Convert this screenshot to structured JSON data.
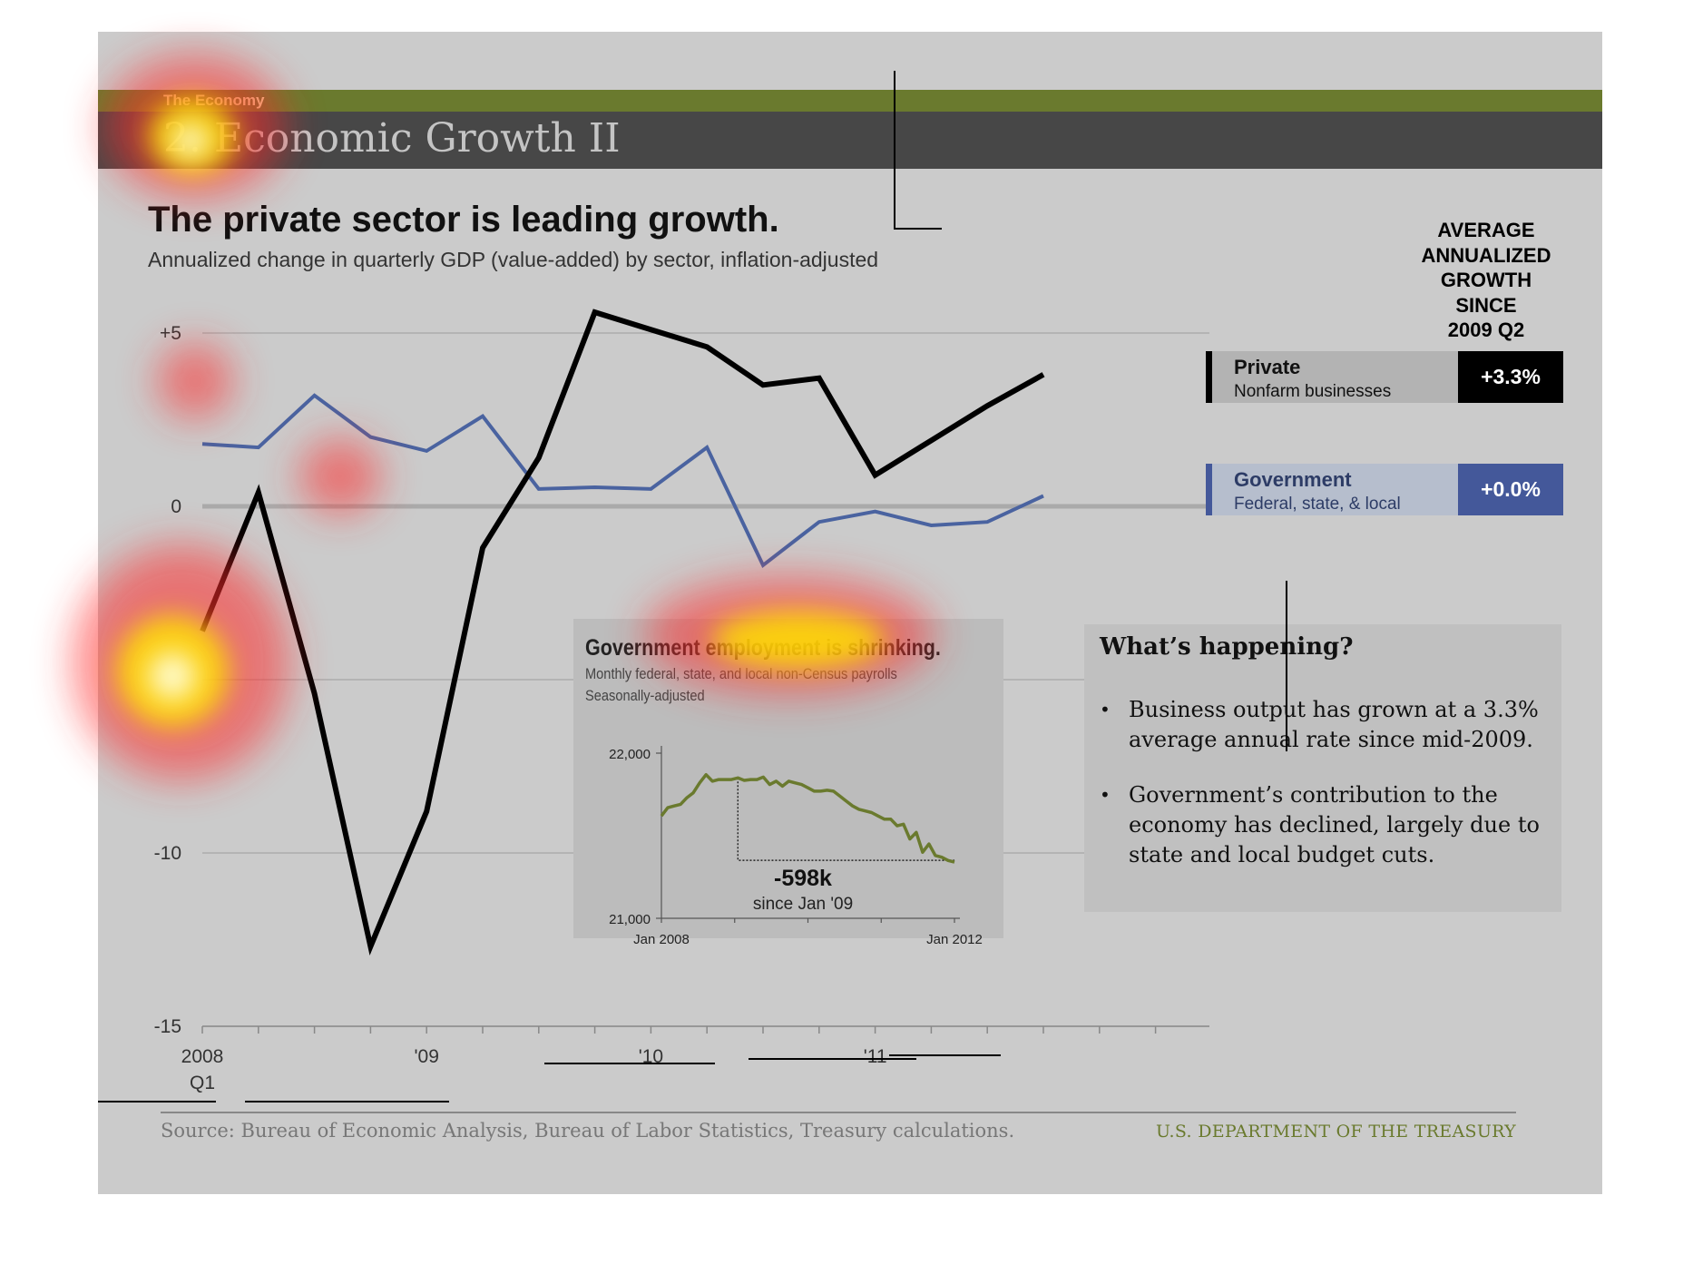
{
  "header": {
    "section_label": "The Economy",
    "slide_title": "2. Economic Growth II"
  },
  "headline": "The private sector is leading growth.",
  "subtitle": "Annualized change in quarterly GDP (value-added) by sector, inflation-adjusted",
  "avg_growth_heading": [
    "AVERAGE",
    "ANNUALIZED",
    "GROWTH",
    "SINCE",
    "2009 Q2"
  ],
  "legend": {
    "private": {
      "title": "Private",
      "subtitle": "Nonfarm businesses",
      "value": "+3.3%"
    },
    "government": {
      "title": "Government",
      "subtitle": "Federal, state, & local",
      "value": "+0.0%"
    }
  },
  "colors": {
    "private": "#000000",
    "government": "#4a63a0",
    "inset_line": "#6a7a2e",
    "header_green": "#6a7a2e",
    "header_dark": "#474747"
  },
  "chart_data": [
    {
      "type": "line",
      "title": "The private sector is leading growth.",
      "subtitle": "Annualized change in quarterly GDP (value-added) by sector, inflation-adjusted",
      "ylim": [
        -15,
        5
      ],
      "yticks": [
        "+5",
        "0",
        "-5",
        "-10",
        "-15"
      ],
      "ytick_labels_shown": [
        "+5",
        "0",
        "-10",
        "-15"
      ],
      "yticks_values": [
        5,
        0,
        -5,
        -10,
        -15
      ],
      "x_labels": [
        {
          "label": "2008",
          "sub": "Q1",
          "index": 0
        },
        {
          "label": "'09",
          "sub": "",
          "index": 4
        },
        {
          "label": "'10",
          "sub": "",
          "index": 8
        },
        {
          "label": "'11",
          "sub": "",
          "index": 12
        }
      ],
      "x_quarters": [
        "2008 Q1",
        "2008 Q2",
        "2008 Q3",
        "2008 Q4",
        "2009 Q1",
        "2009 Q2",
        "2009 Q3",
        "2009 Q4",
        "2010 Q1",
        "2010 Q2",
        "2010 Q3",
        "2010 Q4",
        "2011 Q1",
        "2011 Q2",
        "2011 Q3",
        "2011 Q4"
      ],
      "grid": true,
      "series": [
        {
          "name": "Private",
          "values": [
            -3.6,
            0.4,
            -5.4,
            -12.7,
            -8.8,
            -1.2,
            1.4,
            5.6,
            5.1,
            4.6,
            3.5,
            3.7,
            0.9,
            1.9,
            2.9,
            3.8
          ]
        },
        {
          "name": "Government",
          "values": [
            1.8,
            1.7,
            3.2,
            2.0,
            1.6,
            2.6,
            0.5,
            0.55,
            0.5,
            1.7,
            -1.7,
            -0.45,
            -0.15,
            -0.55,
            -0.45,
            0.3
          ]
        }
      ]
    },
    {
      "type": "line",
      "title": "Government employment is shrinking.",
      "subtitle": "Monthly federal, state, and local non-Census payrolls",
      "subtitle2": "Seasonally-adjusted",
      "ylim": [
        21000,
        22000
      ],
      "ytick_labels": [
        "22,000",
        "21,000"
      ],
      "x_labels": [
        "Jan 2008",
        "Jan 2012"
      ],
      "annotation": {
        "value": "-598k",
        "text": "since Jan '09"
      },
      "series": [
        {
          "name": "",
          "values": [
            21620,
            21670,
            21680,
            21690,
            21730,
            21760,
            21820,
            21870,
            21830,
            21840,
            21840,
            21840,
            21850,
            21835,
            21840,
            21840,
            21855,
            21810,
            21830,
            21800,
            21830,
            21820,
            21810,
            21790,
            21770,
            21770,
            21775,
            21770,
            21740,
            21710,
            21680,
            21660,
            21650,
            21640,
            21620,
            21600,
            21600,
            21560,
            21570,
            21480,
            21520,
            21400,
            21450,
            21380,
            21370,
            21350,
            21340
          ]
        }
      ]
    }
  ],
  "happening": {
    "title": "What’s happening?",
    "bullets": [
      "Business output has grown at a 3.3% average annual rate since mid-2009.",
      "Government’s contribution to the economy has declined, largely due to state and local budget cuts."
    ]
  },
  "footer": {
    "source": "Source: Bureau of Economic Analysis, Bureau of Labor Statistics, Treasury calculations.",
    "department": "U.S. DEPARTMENT OF THE TREASURY"
  }
}
